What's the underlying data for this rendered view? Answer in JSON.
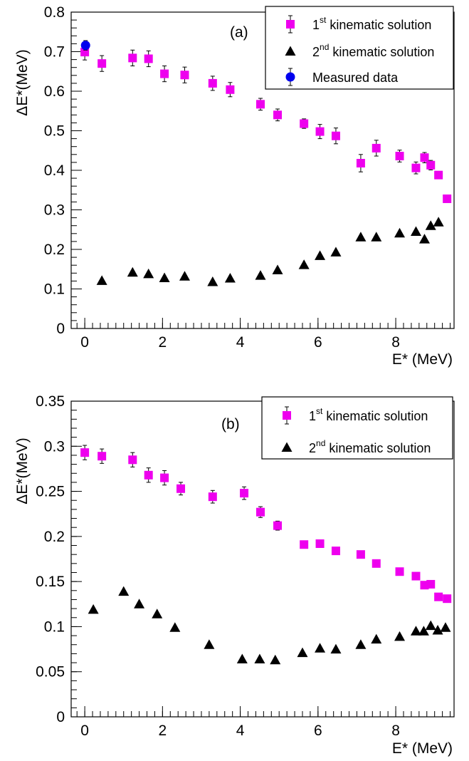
{
  "chart_data": [
    {
      "type": "scatter",
      "panel_label": "(a)",
      "xlabel": "E* (MeV)",
      "ylabel": "ΔE*(MeV)",
      "xlim": [
        -0.35,
        9.5
      ],
      "ylim": [
        0,
        0.8
      ],
      "xticks": [
        "0",
        "2",
        "4",
        "6",
        "8"
      ],
      "yticks": [
        "0",
        "0.1",
        "0.2",
        "0.3",
        "0.4",
        "0.5",
        "0.6",
        "0.7",
        "0.8"
      ],
      "legend_position": "top-right",
      "series": [
        {
          "name": "1st kinematic solution",
          "name_main": "1",
          "name_sup": "st",
          "name_rest": " kinematic solution",
          "marker": "square",
          "color": "#ee00ee",
          "x": [
            0.0,
            0.44,
            1.23,
            1.64,
            2.05,
            2.57,
            3.29,
            3.74,
            4.52,
            4.96,
            5.64,
            6.05,
            6.46,
            7.1,
            7.5,
            8.1,
            8.52,
            8.74,
            8.9,
            9.1,
            9.32
          ],
          "y": [
            0.699,
            0.67,
            0.684,
            0.682,
            0.644,
            0.641,
            0.62,
            0.604,
            0.567,
            0.54,
            0.518,
            0.498,
            0.487,
            0.418,
            0.456,
            0.436,
            0.406,
            0.432,
            0.413,
            0.388,
            0.328
          ],
          "err": [
            0.02,
            0.02,
            0.02,
            0.02,
            0.02,
            0.02,
            0.018,
            0.018,
            0.015,
            0.015,
            0.012,
            0.018,
            0.02,
            0.022,
            0.02,
            0.015,
            0.015,
            0.013,
            0.012,
            0.0,
            0.0
          ]
        },
        {
          "name": "2nd kinematic solution",
          "name_main": "2",
          "name_sup": "nd",
          "name_rest": " kinematic solution",
          "marker": "triangle",
          "color": "#000000",
          "x": [
            0.44,
            1.23,
            1.64,
            2.05,
            2.57,
            3.29,
            3.74,
            4.52,
            4.96,
            5.64,
            6.05,
            6.46,
            7.1,
            7.5,
            8.1,
            8.52,
            8.74,
            8.9,
            9.1
          ],
          "y": [
            0.121,
            0.142,
            0.138,
            0.128,
            0.132,
            0.118,
            0.127,
            0.134,
            0.148,
            0.161,
            0.184,
            0.193,
            0.231,
            0.231,
            0.241,
            0.245,
            0.226,
            0.26,
            0.269
          ]
        },
        {
          "name": "Measured data",
          "marker": "circle",
          "color": "#0000ee",
          "x": [
            0.02
          ],
          "y": [
            0.716
          ],
          "err": [
            0.012
          ]
        }
      ]
    },
    {
      "type": "scatter",
      "panel_label": "(b)",
      "xlabel": "E* (MeV)",
      "ylabel": "ΔE*(MeV)",
      "xlim": [
        -0.35,
        9.5
      ],
      "ylim": [
        0,
        0.35
      ],
      "xticks": [
        "0",
        "2",
        "4",
        "6",
        "8"
      ],
      "yticks": [
        "0",
        "0.05",
        "0.1",
        "0.15",
        "0.2",
        "0.25",
        "0.3",
        "0.35"
      ],
      "legend_position": "top-right",
      "series": [
        {
          "name": "1st kinematic solution",
          "name_main": "1",
          "name_sup": "st",
          "name_rest": " kinematic solution",
          "marker": "square",
          "color": "#ee00ee",
          "x": [
            0.0,
            0.44,
            1.23,
            1.64,
            2.05,
            2.47,
            3.29,
            4.1,
            4.52,
            4.96,
            5.64,
            6.05,
            6.46,
            7.1,
            7.5,
            8.1,
            8.52,
            8.74,
            8.9,
            9.1,
            9.32
          ],
          "y": [
            0.293,
            0.289,
            0.285,
            0.268,
            0.265,
            0.253,
            0.244,
            0.248,
            0.227,
            0.212,
            0.191,
            0.192,
            0.184,
            0.18,
            0.17,
            0.161,
            0.156,
            0.146,
            0.147,
            0.133,
            0.131
          ],
          "err": [
            0.008,
            0.008,
            0.008,
            0.008,
            0.008,
            0.007,
            0.007,
            0.007,
            0.006,
            0.005,
            0.004,
            0.004,
            0.003,
            0.003,
            0.0,
            0.0,
            0.0,
            0.0,
            0.0,
            0.0,
            0.0
          ]
        },
        {
          "name": "2nd kinematic solution",
          "name_main": "2",
          "name_sup": "nd",
          "name_rest": " kinematic solution",
          "marker": "triangle",
          "color": "#000000",
          "x": [
            0.22,
            1.0,
            1.4,
            1.86,
            2.32,
            3.2,
            4.05,
            4.5,
            4.9,
            5.6,
            6.05,
            6.46,
            7.1,
            7.5,
            8.1,
            8.52,
            8.72,
            8.9,
            9.08,
            9.28
          ],
          "y": [
            0.119,
            0.139,
            0.125,
            0.114,
            0.099,
            0.08,
            0.064,
            0.064,
            0.063,
            0.071,
            0.076,
            0.075,
            0.08,
            0.086,
            0.089,
            0.095,
            0.095,
            0.101,
            0.096,
            0.099
          ]
        }
      ]
    }
  ]
}
